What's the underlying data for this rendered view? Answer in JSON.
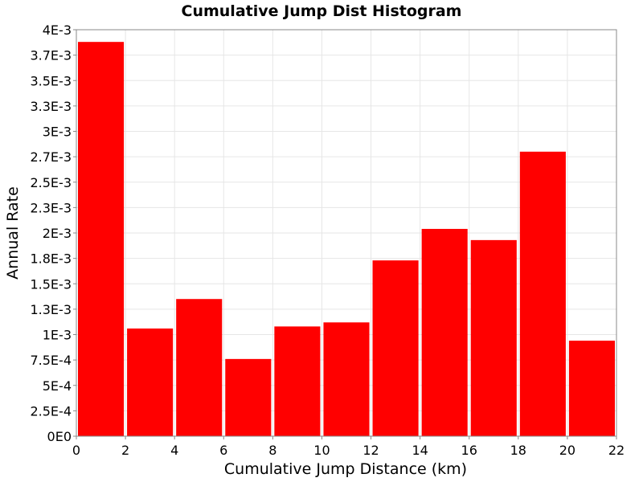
{
  "chart_data": {
    "type": "bar",
    "title": "Cumulative Jump Dist Histogram",
    "xlabel": "Cumulative Jump Distance (km)",
    "ylabel": "Annual Rate",
    "xlim": [
      0,
      22
    ],
    "ylim": [
      0,
      0.004
    ],
    "x_ticks": [
      "0",
      "2",
      "4",
      "6",
      "8",
      "10",
      "12",
      "14",
      "16",
      "18",
      "20",
      "22"
    ],
    "y_ticks": [
      {
        "value": 0,
        "label": "0E0"
      },
      {
        "value": 0.00025,
        "label": "2.5E-4"
      },
      {
        "value": 0.0005,
        "label": "5E-4"
      },
      {
        "value": 0.00075,
        "label": "7.5E-4"
      },
      {
        "value": 0.001,
        "label": "1E-3"
      },
      {
        "value": 0.00125,
        "label": "1.3E-3"
      },
      {
        "value": 0.0015,
        "label": "1.5E-3"
      },
      {
        "value": 0.00175,
        "label": "1.8E-3"
      },
      {
        "value": 0.002,
        "label": "2E-3"
      },
      {
        "value": 0.00225,
        "label": "2.3E-3"
      },
      {
        "value": 0.0025,
        "label": "2.5E-3"
      },
      {
        "value": 0.00275,
        "label": "2.7E-3"
      },
      {
        "value": 0.003,
        "label": "3E-3"
      },
      {
        "value": 0.00325,
        "label": "3.3E-3"
      },
      {
        "value": 0.0035,
        "label": "3.5E-3"
      },
      {
        "value": 0.00375,
        "label": "3.7E-3"
      },
      {
        "value": 0.004,
        "label": "4E-3"
      }
    ],
    "bins": [
      {
        "x0": 0,
        "x1": 2,
        "value": 0.00388
      },
      {
        "x0": 2,
        "x1": 4,
        "value": 0.00106
      },
      {
        "x0": 4,
        "x1": 6,
        "value": 0.00135
      },
      {
        "x0": 6,
        "x1": 8,
        "value": 0.00076
      },
      {
        "x0": 8,
        "x1": 10,
        "value": 0.00108
      },
      {
        "x0": 10,
        "x1": 12,
        "value": 0.00112
      },
      {
        "x0": 12,
        "x1": 14,
        "value": 0.00173
      },
      {
        "x0": 14,
        "x1": 16,
        "value": 0.00204
      },
      {
        "x0": 16,
        "x1": 18,
        "value": 0.00193
      },
      {
        "x0": 18,
        "x1": 20,
        "value": 0.0028
      },
      {
        "x0": 20,
        "x1": 22,
        "value": 0.00094
      }
    ],
    "bar_color": "#ff0000",
    "grid": true,
    "legend": "none"
  }
}
